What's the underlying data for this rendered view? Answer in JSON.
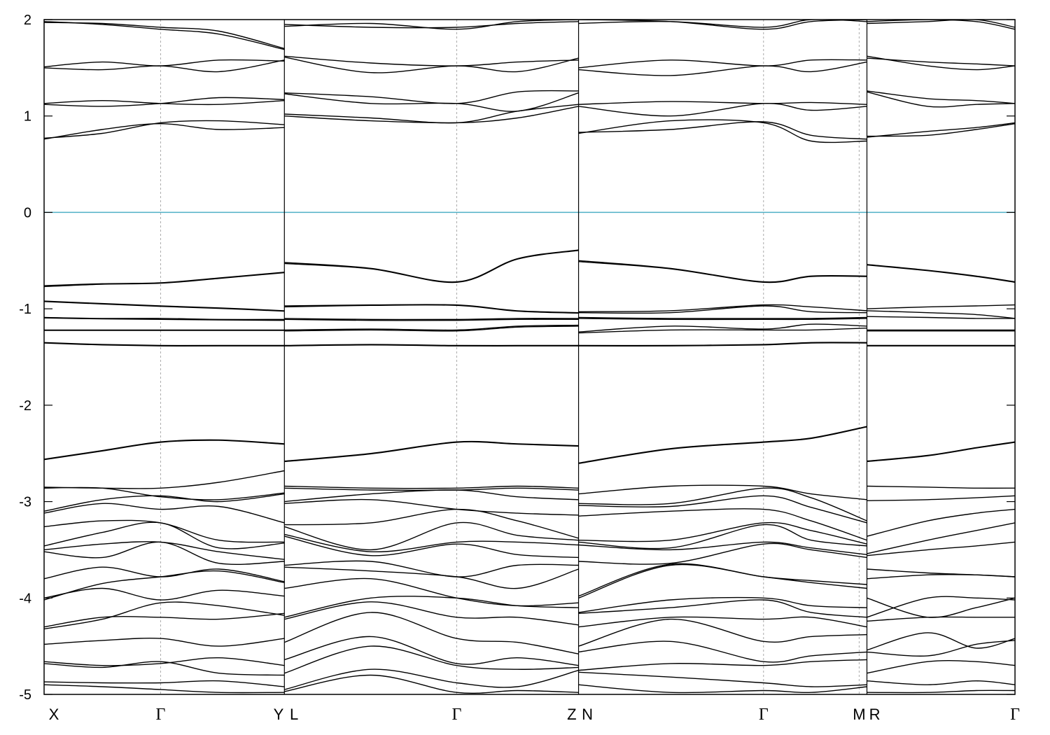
{
  "chart_data": {
    "type": "line",
    "title": "",
    "xlabel": "",
    "ylabel": "",
    "ylim": [
      -5,
      2
    ],
    "yticks": [
      {
        "value": 2,
        "label": "2"
      },
      {
        "value": 1,
        "label": "1"
      },
      {
        "value": 0,
        "label": "0"
      },
      {
        "value": -1,
        "label": "-1"
      },
      {
        "value": -2,
        "label": "-2"
      },
      {
        "value": -3,
        "label": "-3"
      },
      {
        "value": -4,
        "label": "-4"
      },
      {
        "value": -5,
        "label": "-5"
      }
    ],
    "xlim": [
      0,
      1
    ],
    "kpoint_labels": [
      {
        "pos": 0.0,
        "label": "X"
      },
      {
        "pos": 0.12,
        "label": "Γ"
      },
      {
        "pos": 0.2415,
        "label": "Y"
      },
      {
        "pos": 0.2575,
        "label": "L"
      },
      {
        "pos": 0.425,
        "label": "Γ"
      },
      {
        "pos": 0.5435,
        "label": "Z"
      },
      {
        "pos": 0.5595,
        "label": "N"
      },
      {
        "pos": 0.741,
        "label": "Γ"
      },
      {
        "pos": 0.8395,
        "label": "M"
      },
      {
        "pos": 0.8555,
        "label": "R"
      },
      {
        "pos": 1.0,
        "label": "Γ"
      }
    ],
    "dashed_vlines": [
      0.12,
      0.425,
      0.741,
      0.8395
    ],
    "segment_breaks": [
      0.2475,
      0.5505,
      0.8475
    ],
    "fermi_level": {
      "value": 0,
      "color": "#4fb0c6"
    },
    "band_color": "#000000",
    "segments": [
      {
        "name": "X-Γ-Y",
        "x": [
          0.0,
          0.06,
          0.12,
          0.18,
          0.2475
        ],
        "bands": [
          [
            1.98,
            1.95,
            1.9,
            1.85,
            1.69
          ],
          [
            1.97,
            1.96,
            1.92,
            1.88,
            1.7
          ],
          [
            1.5,
            1.48,
            1.52,
            1.46,
            1.58
          ],
          [
            1.51,
            1.56,
            1.52,
            1.58,
            1.57
          ],
          [
            1.12,
            1.1,
            1.13,
            1.19,
            1.17
          ],
          [
            1.13,
            1.16,
            1.13,
            1.12,
            1.16
          ],
          [
            0.77,
            0.82,
            0.93,
            0.95,
            0.91
          ],
          [
            0.76,
            0.86,
            0.92,
            0.86,
            0.88
          ],
          [
            -0.76,
            -0.74,
            -0.73,
            -0.68,
            -0.62
          ],
          [
            -0.77,
            -0.745,
            -0.735,
            -0.685,
            -0.625
          ],
          [
            -0.92,
            -0.945,
            -0.97,
            -0.99,
            -1.02
          ],
          [
            -0.925,
            -0.95,
            -0.975,
            -0.995,
            -1.025
          ],
          [
            -1.09,
            -1.1,
            -1.1,
            -1.11,
            -1.11
          ],
          [
            -1.095,
            -1.105,
            -1.11,
            -1.115,
            -1.12
          ],
          [
            -1.22,
            -1.22,
            -1.22,
            -1.22,
            -1.22
          ],
          [
            -1.225,
            -1.225,
            -1.225,
            -1.225,
            -1.225
          ],
          [
            -1.35,
            -1.37,
            -1.38,
            -1.38,
            -1.38
          ],
          [
            -1.355,
            -1.375,
            -1.385,
            -1.385,
            -1.385
          ],
          [
            -2.56,
            -2.47,
            -2.38,
            -2.36,
            -2.4
          ],
          [
            -2.565,
            -2.475,
            -2.385,
            -2.365,
            -2.405
          ],
          [
            -2.85,
            -2.86,
            -2.86,
            -2.8,
            -2.68
          ],
          [
            -2.86,
            -2.86,
            -2.95,
            -2.98,
            -2.91
          ],
          [
            -3.1,
            -2.98,
            -2.94,
            -3.0,
            -2.92
          ],
          [
            -3.12,
            -3.02,
            -3.08,
            -3.05,
            -3.22
          ],
          [
            -3.26,
            -3.2,
            -3.22,
            -3.4,
            -3.42
          ],
          [
            -3.46,
            -3.32,
            -3.22,
            -3.48,
            -3.43
          ],
          [
            -3.5,
            -3.44,
            -3.42,
            -3.52,
            -3.6
          ],
          [
            -3.52,
            -3.58,
            -3.42,
            -3.64,
            -3.62
          ],
          [
            -3.8,
            -3.68,
            -3.78,
            -3.7,
            -3.83
          ],
          [
            -4.02,
            -3.85,
            -3.78,
            -3.72,
            -3.84
          ],
          [
            -4.0,
            -3.9,
            -4.02,
            -3.92,
            -3.98
          ],
          [
            -4.3,
            -4.2,
            -4.2,
            -4.22,
            -4.16
          ],
          [
            -4.32,
            -4.22,
            -4.05,
            -4.08,
            -4.18
          ],
          [
            -4.48,
            -4.44,
            -4.42,
            -4.5,
            -4.42
          ],
          [
            -4.66,
            -4.7,
            -4.68,
            -4.62,
            -4.7
          ],
          [
            -4.68,
            -4.72,
            -4.66,
            -4.78,
            -4.8
          ],
          [
            -4.87,
            -4.88,
            -4.88,
            -4.86,
            -4.92
          ],
          [
            -4.9,
            -4.92,
            -4.95,
            -4.98,
            -4.98
          ]
        ]
      },
      {
        "name": "L-Γ-Z",
        "x": [
          0.2475,
          0.3365,
          0.425,
          0.4875,
          0.5505
        ],
        "bands": [
          [
            1.93,
            1.96,
            1.9,
            1.98,
            2.0
          ],
          [
            1.95,
            1.92,
            1.92,
            1.96,
            1.98
          ],
          [
            1.62,
            1.55,
            1.52,
            1.56,
            1.58
          ],
          [
            1.61,
            1.45,
            1.52,
            1.46,
            1.6
          ],
          [
            1.24,
            1.2,
            1.13,
            1.25,
            1.26
          ],
          [
            1.23,
            1.13,
            1.13,
            1.05,
            1.24
          ],
          [
            1.02,
            0.98,
            0.93,
            1.05,
            1.12
          ],
          [
            1.0,
            0.95,
            0.93,
            0.98,
            1.1
          ],
          [
            -0.52,
            -0.58,
            -0.72,
            -0.48,
            -0.39
          ],
          [
            -0.53,
            -0.585,
            -0.725,
            -0.485,
            -0.395
          ],
          [
            -0.97,
            -0.96,
            -0.96,
            -1.02,
            -1.04
          ],
          [
            -0.98,
            -0.965,
            -0.965,
            -1.025,
            -1.045
          ],
          [
            -1.1,
            -1.11,
            -1.11,
            -1.1,
            -1.1
          ],
          [
            -1.11,
            -1.12,
            -1.12,
            -1.11,
            -1.11
          ],
          [
            -1.22,
            -1.21,
            -1.22,
            -1.18,
            -1.17
          ],
          [
            -1.23,
            -1.22,
            -1.23,
            -1.19,
            -1.18
          ],
          [
            -1.38,
            -1.37,
            -1.38,
            -1.38,
            -1.38
          ],
          [
            -1.385,
            -1.375,
            -1.385,
            -1.385,
            -1.385
          ],
          [
            -2.58,
            -2.5,
            -2.38,
            -2.4,
            -2.42
          ],
          [
            -2.585,
            -2.505,
            -2.385,
            -2.405,
            -2.425
          ],
          [
            -2.84,
            -2.86,
            -2.86,
            -2.84,
            -2.86
          ],
          [
            -2.86,
            -2.88,
            -2.88,
            -2.86,
            -2.88
          ],
          [
            -3.0,
            -2.92,
            -2.88,
            -2.95,
            -2.98
          ],
          [
            -3.02,
            -2.98,
            -3.08,
            -3.12,
            -3.14
          ],
          [
            -3.24,
            -3.22,
            -3.08,
            -3.2,
            -3.38
          ],
          [
            -3.26,
            -3.5,
            -3.22,
            -3.35,
            -3.4
          ],
          [
            -3.34,
            -3.52,
            -3.42,
            -3.42,
            -3.45
          ],
          [
            -3.36,
            -3.56,
            -3.44,
            -3.55,
            -3.58
          ],
          [
            -3.66,
            -3.62,
            -3.78,
            -3.66,
            -3.66
          ],
          [
            -3.68,
            -3.72,
            -3.78,
            -3.9,
            -3.7
          ],
          [
            -3.9,
            -3.8,
            -4.0,
            -4.08,
            -4.05
          ],
          [
            -4.2,
            -4.0,
            -4.0,
            -4.08,
            -4.1
          ],
          [
            -4.22,
            -4.04,
            -4.2,
            -4.2,
            -4.28
          ],
          [
            -4.46,
            -4.15,
            -4.42,
            -4.46,
            -4.58
          ],
          [
            -4.64,
            -4.4,
            -4.68,
            -4.62,
            -4.7
          ],
          [
            -4.78,
            -4.5,
            -4.7,
            -4.74,
            -4.72
          ],
          [
            -4.95,
            -4.74,
            -4.88,
            -4.92,
            -4.75
          ],
          [
            -4.97,
            -4.8,
            -4.98,
            -4.96,
            -4.98
          ]
        ]
      },
      {
        "name": "N-Γ-M",
        "x": [
          0.5505,
          0.645,
          0.741,
          0.79,
          0.8475
        ],
        "bands": [
          [
            2.0,
            1.98,
            1.9,
            1.98,
            2.0
          ],
          [
            1.96,
            1.98,
            1.92,
            2.0,
            1.98
          ],
          [
            1.5,
            1.58,
            1.52,
            1.58,
            1.58
          ],
          [
            1.48,
            1.42,
            1.52,
            1.46,
            1.56
          ],
          [
            1.12,
            1.15,
            1.13,
            1.14,
            1.12
          ],
          [
            1.1,
            1.0,
            1.13,
            1.06,
            1.1
          ],
          [
            0.82,
            0.95,
            0.93,
            0.74,
            0.74
          ],
          [
            0.83,
            0.86,
            0.94,
            0.8,
            0.76
          ],
          [
            -0.5,
            -0.58,
            -0.72,
            -0.66,
            -0.66
          ],
          [
            -0.51,
            -0.585,
            -0.725,
            -0.665,
            -0.665
          ],
          [
            -1.03,
            -1.02,
            -0.96,
            -0.98,
            -1.02
          ],
          [
            -1.04,
            -1.04,
            -0.97,
            -1.03,
            -1.04
          ],
          [
            -1.09,
            -1.1,
            -1.1,
            -1.1,
            -1.09
          ],
          [
            -1.1,
            -1.11,
            -1.11,
            -1.11,
            -1.1
          ],
          [
            -1.24,
            -1.18,
            -1.21,
            -1.16,
            -1.18
          ],
          [
            -1.25,
            -1.22,
            -1.22,
            -1.22,
            -1.2
          ],
          [
            -1.38,
            -1.38,
            -1.37,
            -1.35,
            -1.35
          ],
          [
            -1.385,
            -1.385,
            -1.375,
            -1.355,
            -1.355
          ],
          [
            -2.6,
            -2.45,
            -2.38,
            -2.34,
            -2.22
          ],
          [
            -2.605,
            -2.455,
            -2.385,
            -2.345,
            -2.225
          ],
          [
            -2.92,
            -2.84,
            -2.84,
            -2.92,
            -2.98
          ],
          [
            -3.02,
            -3.02,
            -2.86,
            -2.96,
            -3.2
          ],
          [
            -3.04,
            -3.05,
            -2.94,
            -3.06,
            -3.22
          ],
          [
            -3.15,
            -3.1,
            -3.08,
            -3.2,
            -3.4
          ],
          [
            -3.4,
            -3.4,
            -3.22,
            -3.3,
            -3.44
          ],
          [
            -3.42,
            -3.48,
            -3.24,
            -3.4,
            -3.46
          ],
          [
            -3.45,
            -3.5,
            -3.42,
            -3.48,
            -3.55
          ],
          [
            -3.62,
            -3.64,
            -3.44,
            -3.5,
            -3.58
          ],
          [
            -3.98,
            -3.65,
            -3.78,
            -3.82,
            -3.86
          ],
          [
            -4.0,
            -3.66,
            -3.78,
            -3.84,
            -3.9
          ],
          [
            -4.15,
            -4.02,
            -4.0,
            -4.08,
            -4.1
          ],
          [
            -4.16,
            -4.1,
            -4.02,
            -4.15,
            -4.2
          ],
          [
            -4.3,
            -4.2,
            -4.22,
            -4.2,
            -4.3
          ],
          [
            -4.5,
            -4.22,
            -4.45,
            -4.4,
            -4.38
          ],
          [
            -4.56,
            -4.45,
            -4.66,
            -4.6,
            -4.56
          ],
          [
            -4.75,
            -4.68,
            -4.7,
            -4.66,
            -4.64
          ],
          [
            -4.77,
            -4.82,
            -4.88,
            -4.92,
            -4.9
          ],
          [
            -4.9,
            -4.98,
            -4.96,
            -4.98,
            -4.92
          ]
        ]
      },
      {
        "name": "R-Γ",
        "x": [
          0.8475,
          0.91,
          0.96,
          1.0
        ],
        "bands": [
          [
            1.98,
            2.0,
            1.98,
            1.9
          ],
          [
            1.96,
            1.98,
            2.0,
            1.92
          ],
          [
            1.62,
            1.52,
            1.48,
            1.52
          ],
          [
            1.6,
            1.56,
            1.54,
            1.52
          ],
          [
            1.26,
            1.18,
            1.16,
            1.13
          ],
          [
            1.25,
            1.1,
            1.12,
            1.13
          ],
          [
            0.78,
            0.84,
            0.88,
            0.93
          ],
          [
            0.79,
            0.8,
            0.86,
            0.92
          ],
          [
            -0.54,
            -0.6,
            -0.66,
            -0.72
          ],
          [
            -0.545,
            -0.605,
            -0.665,
            -0.725
          ],
          [
            -1.0,
            -0.98,
            -0.97,
            -0.96
          ],
          [
            -1.02,
            -1.04,
            -1.06,
            -1.1
          ],
          [
            -1.08,
            -1.09,
            -1.1,
            -1.1
          ],
          [
            -1.22,
            -1.22,
            -1.22,
            -1.22
          ],
          [
            -1.23,
            -1.23,
            -1.23,
            -1.23
          ],
          [
            -1.38,
            -1.38,
            -1.38,
            -1.38
          ],
          [
            -1.385,
            -1.385,
            -1.385,
            -1.385
          ],
          [
            -2.58,
            -2.52,
            -2.44,
            -2.38
          ],
          [
            -2.585,
            -2.525,
            -2.445,
            -2.385
          ],
          [
            -2.84,
            -2.85,
            -2.86,
            -2.86
          ],
          [
            -2.99,
            -2.98,
            -2.96,
            -2.94
          ],
          [
            -3.36,
            -3.2,
            -3.12,
            -3.08
          ],
          [
            -3.54,
            -3.4,
            -3.3,
            -3.22
          ],
          [
            -3.56,
            -3.5,
            -3.46,
            -3.42
          ],
          [
            -3.7,
            -3.74,
            -3.76,
            -3.78
          ],
          [
            -3.8,
            -3.76,
            -3.76,
            -3.78
          ],
          [
            -4.0,
            -4.2,
            -4.1,
            -4.0
          ],
          [
            -4.2,
            -4.0,
            -4.0,
            -4.02
          ],
          [
            -4.24,
            -4.2,
            -4.2,
            -4.2
          ],
          [
            -4.54,
            -4.36,
            -4.52,
            -4.42
          ],
          [
            -4.56,
            -4.6,
            -4.48,
            -4.44
          ],
          [
            -4.78,
            -4.66,
            -4.66,
            -4.7
          ],
          [
            -4.86,
            -4.9,
            -4.86,
            -4.9
          ],
          [
            -4.98,
            -4.98,
            -4.96,
            -4.96
          ]
        ]
      }
    ]
  }
}
